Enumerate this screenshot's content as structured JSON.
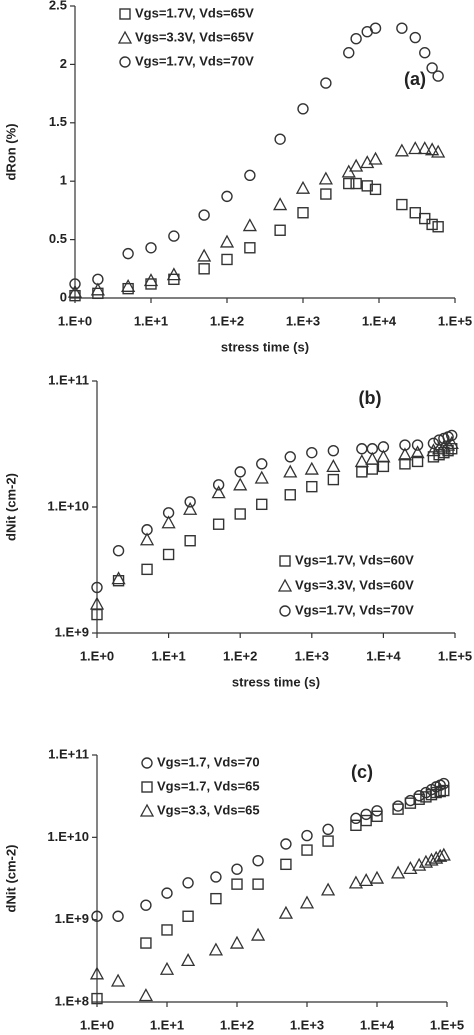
{
  "chart_data": [
    {
      "type": "scatter",
      "annotation": "(a)",
      "xlabel": "stress time (s)",
      "ylabel": "dRon (%)",
      "xscale": "log",
      "yscale": "linear",
      "legend": "upper left",
      "xlim": [
        1,
        100000
      ],
      "ylim": [
        0,
        2.5
      ],
      "xticks": [
        {
          "value": 1,
          "label": "1.E+0"
        },
        {
          "value": 10,
          "label": "1.E+1"
        },
        {
          "value": 100,
          "label": "1.E+2"
        },
        {
          "value": 1000,
          "label": "1.E+3"
        },
        {
          "value": 10000,
          "label": "1.E+4"
        },
        {
          "value": 100000,
          "label": "1.E+5"
        }
      ],
      "yticks": [
        0,
        0.5,
        1,
        1.5,
        2,
        2.5
      ],
      "x": [
        1,
        2,
        5,
        10,
        20,
        50,
        100,
        200,
        500,
        1000,
        2000,
        4000,
        5000,
        7000,
        9000,
        20000,
        30000,
        40000,
        50000,
        60000
      ],
      "series": [
        {
          "name": "Vgs=1.7V, Vds=65V",
          "marker": "square",
          "color": "#333333",
          "values": [
            0.02,
            0.04,
            0.08,
            0.12,
            0.16,
            0.25,
            0.33,
            0.43,
            0.58,
            0.73,
            0.89,
            0.98,
            0.98,
            0.96,
            0.93,
            0.8,
            0.73,
            0.68,
            0.63,
            0.61
          ]
        },
        {
          "name": "Vgs=3.3V, Vds=65V",
          "marker": "triangle",
          "color": "#333333",
          "values": [
            0.05,
            0.07,
            0.1,
            0.15,
            0.2,
            0.36,
            0.48,
            0.62,
            0.8,
            0.94,
            1.02,
            1.08,
            1.13,
            1.16,
            1.19,
            1.26,
            1.28,
            1.28,
            1.27,
            1.25
          ]
        },
        {
          "name": "Vgs=1.7V, Vds=70V",
          "marker": "circle",
          "color": "#333333",
          "values": [
            0.12,
            0.16,
            0.38,
            0.43,
            0.53,
            0.71,
            0.87,
            1.05,
            1.36,
            1.62,
            1.84,
            2.1,
            2.22,
            2.28,
            2.31,
            2.31,
            2.23,
            2.1,
            1.97,
            1.9
          ]
        }
      ]
    },
    {
      "type": "scatter",
      "annotation": "(b)",
      "xlabel": "stress time (s)",
      "ylabel": "dNit (cm-2)",
      "xscale": "log",
      "yscale": "log",
      "legend": "lower right",
      "xlim": [
        1,
        100000
      ],
      "ylim": [
        1000000000,
        100000000000
      ],
      "xticks": [
        {
          "value": 1,
          "label": "1.E+0"
        },
        {
          "value": 10,
          "label": "1.E+1"
        },
        {
          "value": 100,
          "label": "1.E+2"
        },
        {
          "value": 1000,
          "label": "1.E+3"
        },
        {
          "value": 10000,
          "label": "1.E+4"
        },
        {
          "value": 100000,
          "label": "1.E+5"
        }
      ],
      "yticks": [
        {
          "value": 1000000000,
          "label": "1.E+9"
        },
        {
          "value": 10000000000,
          "label": "1.E+10"
        },
        {
          "value": 100000000000,
          "label": "1.E+11"
        }
      ],
      "x": [
        1,
        2,
        5,
        10,
        20,
        50,
        100,
        200,
        500,
        1000,
        2000,
        5000,
        7000,
        10000,
        20000,
        30000,
        50000,
        60000,
        70000,
        80000,
        90000
      ],
      "series": [
        {
          "name": "Vgs=1.7V, Vds=60V",
          "marker": "square",
          "color": "#333333",
          "values": [
            1400000000,
            2600000000,
            3200000000,
            4200000000,
            5400000000,
            7300000000,
            8800000000,
            10500000000,
            12500000000,
            14500000000,
            16500000000,
            19000000000,
            20000000000,
            21000000000,
            22000000000,
            23000000000,
            25000000000,
            26000000000,
            27000000000,
            28000000000,
            29000000000
          ]
        },
        {
          "name": "Vgs=3.3V, Vds=60V",
          "marker": "triangle",
          "color": "#333333",
          "values": [
            1700000000,
            2700000000,
            5500000000,
            7500000000,
            9600000000,
            13000000000,
            15000000000,
            17000000000,
            19000000000,
            20000000000,
            21000000000,
            23000000000,
            24000000000,
            25000000000,
            26000000000,
            27000000000,
            28000000000,
            29000000000,
            30000000000,
            31000000000,
            32000000000
          ]
        },
        {
          "name": "Vgs=1.7V, Vds=70V",
          "marker": "circle",
          "color": "#333333",
          "values": [
            2300000000,
            4500000000,
            6600000000,
            9000000000,
            11000000000,
            15000000000,
            19000000000,
            22000000000,
            25000000000,
            27000000000,
            28000000000,
            29000000000,
            29000000000,
            30000000000,
            31000000000,
            31000000000,
            32000000000,
            34000000000,
            35000000000,
            36000000000,
            37000000000
          ]
        }
      ]
    },
    {
      "type": "scatter",
      "annotation": "(c)",
      "xlabel": "stress time (s)",
      "ylabel": "dNit (cm-2)",
      "xscale": "log",
      "yscale": "log",
      "legend": "upper left",
      "xlim": [
        1,
        100000
      ],
      "ylim": [
        100000000,
        100000000000
      ],
      "xticks": [
        {
          "value": 1,
          "label": "1.E+0"
        },
        {
          "value": 10,
          "label": "1.E+1"
        },
        {
          "value": 100,
          "label": "1.E+2"
        },
        {
          "value": 1000,
          "label": "1.E+3"
        },
        {
          "value": 10000,
          "label": "1.E+4"
        },
        {
          "value": 100000,
          "label": "1.E+5"
        }
      ],
      "yticks": [
        {
          "value": 100000000,
          "label": "1.E+8"
        },
        {
          "value": 1000000000,
          "label": "1.E+9"
        },
        {
          "value": 10000000000,
          "label": "1.E+10"
        },
        {
          "value": 100000000000,
          "label": "1.E+11"
        }
      ],
      "x": [
        1,
        2,
        5,
        10,
        20,
        50,
        100,
        200,
        500,
        1000,
        2000,
        5000,
        7000,
        10000,
        20000,
        30000,
        40000,
        50000,
        60000,
        70000,
        80000,
        90000
      ],
      "series": [
        {
          "name": "Vgs=1.7, Vds=70",
          "marker": "circle",
          "color": "#333333",
          "values": [
            1100000000,
            1100000000,
            1500000000,
            2100000000,
            2800000000,
            3300000000,
            4100000000,
            5200000000,
            8300000000,
            10500000000,
            12500000000,
            17000000000,
            19000000000,
            21000000000,
            24000000000,
            28000000000,
            32000000000,
            35000000000,
            38000000000,
            41000000000,
            43000000000,
            45000000000
          ]
        },
        {
          "name": "Vgs=1.7, Vds=65",
          "marker": "square",
          "color": "#333333",
          "values": [
            110000000,
            null,
            520000000,
            750000000,
            1100000000,
            1800000000,
            2700000000,
            2700000000,
            4700000000,
            7000000000,
            9000000000,
            14000000000,
            16000000000,
            18000000000,
            22000000000,
            26000000000,
            29000000000,
            31000000000,
            33000000000,
            35000000000,
            36000000000,
            37000000000
          ]
        },
        {
          "name": "Vgs=3.3, Vds=65",
          "marker": "triangle",
          "color": "#333333",
          "values": [
            220000000,
            180000000,
            120000000,
            250000000,
            320000000,
            430000000,
            520000000,
            650000000,
            1200000000,
            1600000000,
            2300000000,
            2800000000,
            3000000000,
            3200000000,
            3700000000,
            4200000000,
            4600000000,
            5000000000,
            5300000000,
            5600000000,
            5900000000,
            6100000000
          ]
        }
      ]
    }
  ]
}
